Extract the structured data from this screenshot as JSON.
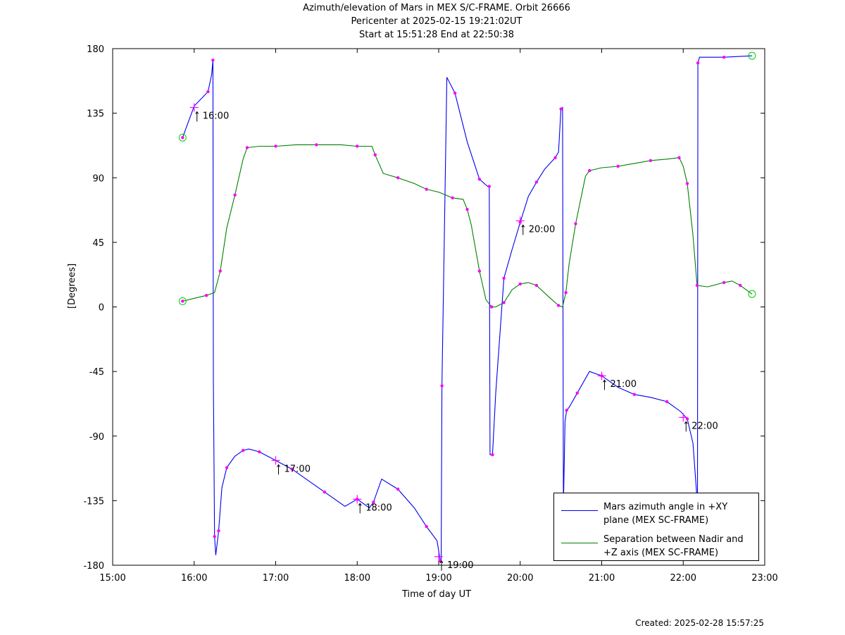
{
  "header": {
    "line1": "Azimuth/elevation of Mars in MEX S/C-FRAME.  Orbit 26666",
    "line2": "Pericenter at 2025-02-15 19:21:02UT",
    "line3": "Start at 15:51:28 End at 22:50:38"
  },
  "footer": {
    "created": "Created: 2025-02-28 15:57:25"
  },
  "chart_data": {
    "type": "line",
    "xlabel": "Time of day UT",
    "ylabel": "[Degrees]",
    "xlim": [
      15.0,
      23.0
    ],
    "ylim": [
      -180,
      180
    ],
    "x_ticks": [
      "15:00",
      "16:00",
      "17:00",
      "18:00",
      "19:00",
      "20:00",
      "21:00",
      "22:00",
      "23:00"
    ],
    "y_ticks": [
      "180",
      "135",
      "90",
      "45",
      "0",
      "-45",
      "-90",
      "-135",
      "-180"
    ],
    "grid": false,
    "legend_position": "bottom-right",
    "hour_annotations": [
      {
        "label": "16:00",
        "x": 16.0,
        "y": 139
      },
      {
        "label": "17:00",
        "x": 17.0,
        "y": -107
      },
      {
        "label": "18:00",
        "x": 18.0,
        "y": -134
      },
      {
        "label": "19:00",
        "x": 19.0,
        "y": -174
      },
      {
        "label": "20:00",
        "x": 20.0,
        "y": 60
      },
      {
        "label": "21:00",
        "x": 21.0,
        "y": -48
      },
      {
        "label": "22:00",
        "x": 22.0,
        "y": -77
      }
    ],
    "series": [
      {
        "name": "Mars azimuth angle in +XY plane (MEX SC-FRAME)",
        "color": "#0000ee",
        "x": [
          15.858,
          16.0,
          16.17,
          16.215,
          16.23,
          16.235,
          16.25,
          16.265,
          16.3,
          16.34,
          16.4,
          16.5,
          16.6,
          16.67,
          16.8,
          17.0,
          17.2,
          17.4,
          17.6,
          17.85,
          18.0,
          18.15,
          18.2,
          18.3,
          18.5,
          18.7,
          18.85,
          18.98,
          19.02,
          19.03,
          19.04,
          19.1,
          19.2,
          19.35,
          19.5,
          19.6,
          19.62,
          19.63,
          19.66,
          19.7,
          19.8,
          19.9,
          20.0,
          20.1,
          20.2,
          20.3,
          20.43,
          20.47,
          20.5,
          20.52,
          20.53,
          20.55,
          20.57,
          20.6,
          20.7,
          20.85,
          21.0,
          21.2,
          21.4,
          21.6,
          21.8,
          21.97,
          22.05,
          22.12,
          22.17,
          22.175,
          22.18,
          22.2,
          22.5,
          22.844
        ],
        "y": [
          118,
          140,
          150,
          162,
          172,
          -50,
          -160,
          -173,
          -156,
          -126,
          -112,
          -104,
          -100,
          -99,
          -101,
          -107,
          -113,
          -121,
          -129,
          -139,
          -134,
          -140,
          -136,
          -120,
          -127,
          -140,
          -153,
          -163,
          -177,
          -177,
          -55,
          160,
          149,
          115,
          89,
          84,
          84,
          -103,
          -103,
          -60,
          20,
          40,
          59,
          77,
          87,
          96,
          104,
          108,
          138,
          139,
          -140,
          -80,
          -72,
          -70,
          -60,
          -45,
          -48,
          -56,
          -61,
          -63,
          -66,
          -73,
          -78,
          -95,
          -134,
          -134,
          170,
          174,
          174,
          175
        ]
      },
      {
        "name": "Separation between Nadir and +Z axis (MEX SC-FRAME)",
        "color": "#008000",
        "x": [
          15.858,
          16.0,
          16.15,
          16.25,
          16.32,
          16.4,
          16.5,
          16.6,
          16.65,
          16.8,
          17.0,
          17.25,
          17.5,
          17.8,
          18.0,
          18.18,
          18.22,
          18.32,
          18.5,
          18.7,
          18.85,
          19.0,
          19.17,
          19.3,
          19.35,
          19.4,
          19.5,
          19.58,
          19.65,
          19.7,
          19.8,
          19.9,
          20.0,
          20.1,
          20.2,
          20.35,
          20.47,
          20.52,
          20.56,
          20.6,
          20.68,
          20.8,
          20.85,
          21.0,
          21.2,
          21.4,
          21.6,
          21.8,
          21.95,
          22.0,
          22.05,
          22.12,
          22.17,
          22.3,
          22.5,
          22.6,
          22.7,
          22.844
        ],
        "y": [
          4,
          6,
          8,
          10,
          25,
          55,
          78,
          103,
          111,
          112,
          112,
          113,
          113,
          113,
          112,
          112,
          106,
          93,
          90,
          86,
          82,
          80,
          76,
          75,
          68,
          57,
          25,
          5,
          0,
          0,
          3,
          12,
          16,
          17,
          15,
          7,
          1,
          0,
          10,
          30,
          58,
          91,
          95,
          97,
          98,
          100,
          102,
          103,
          104,
          98,
          86,
          50,
          15,
          14,
          17,
          18,
          15,
          9
        ]
      }
    ]
  }
}
